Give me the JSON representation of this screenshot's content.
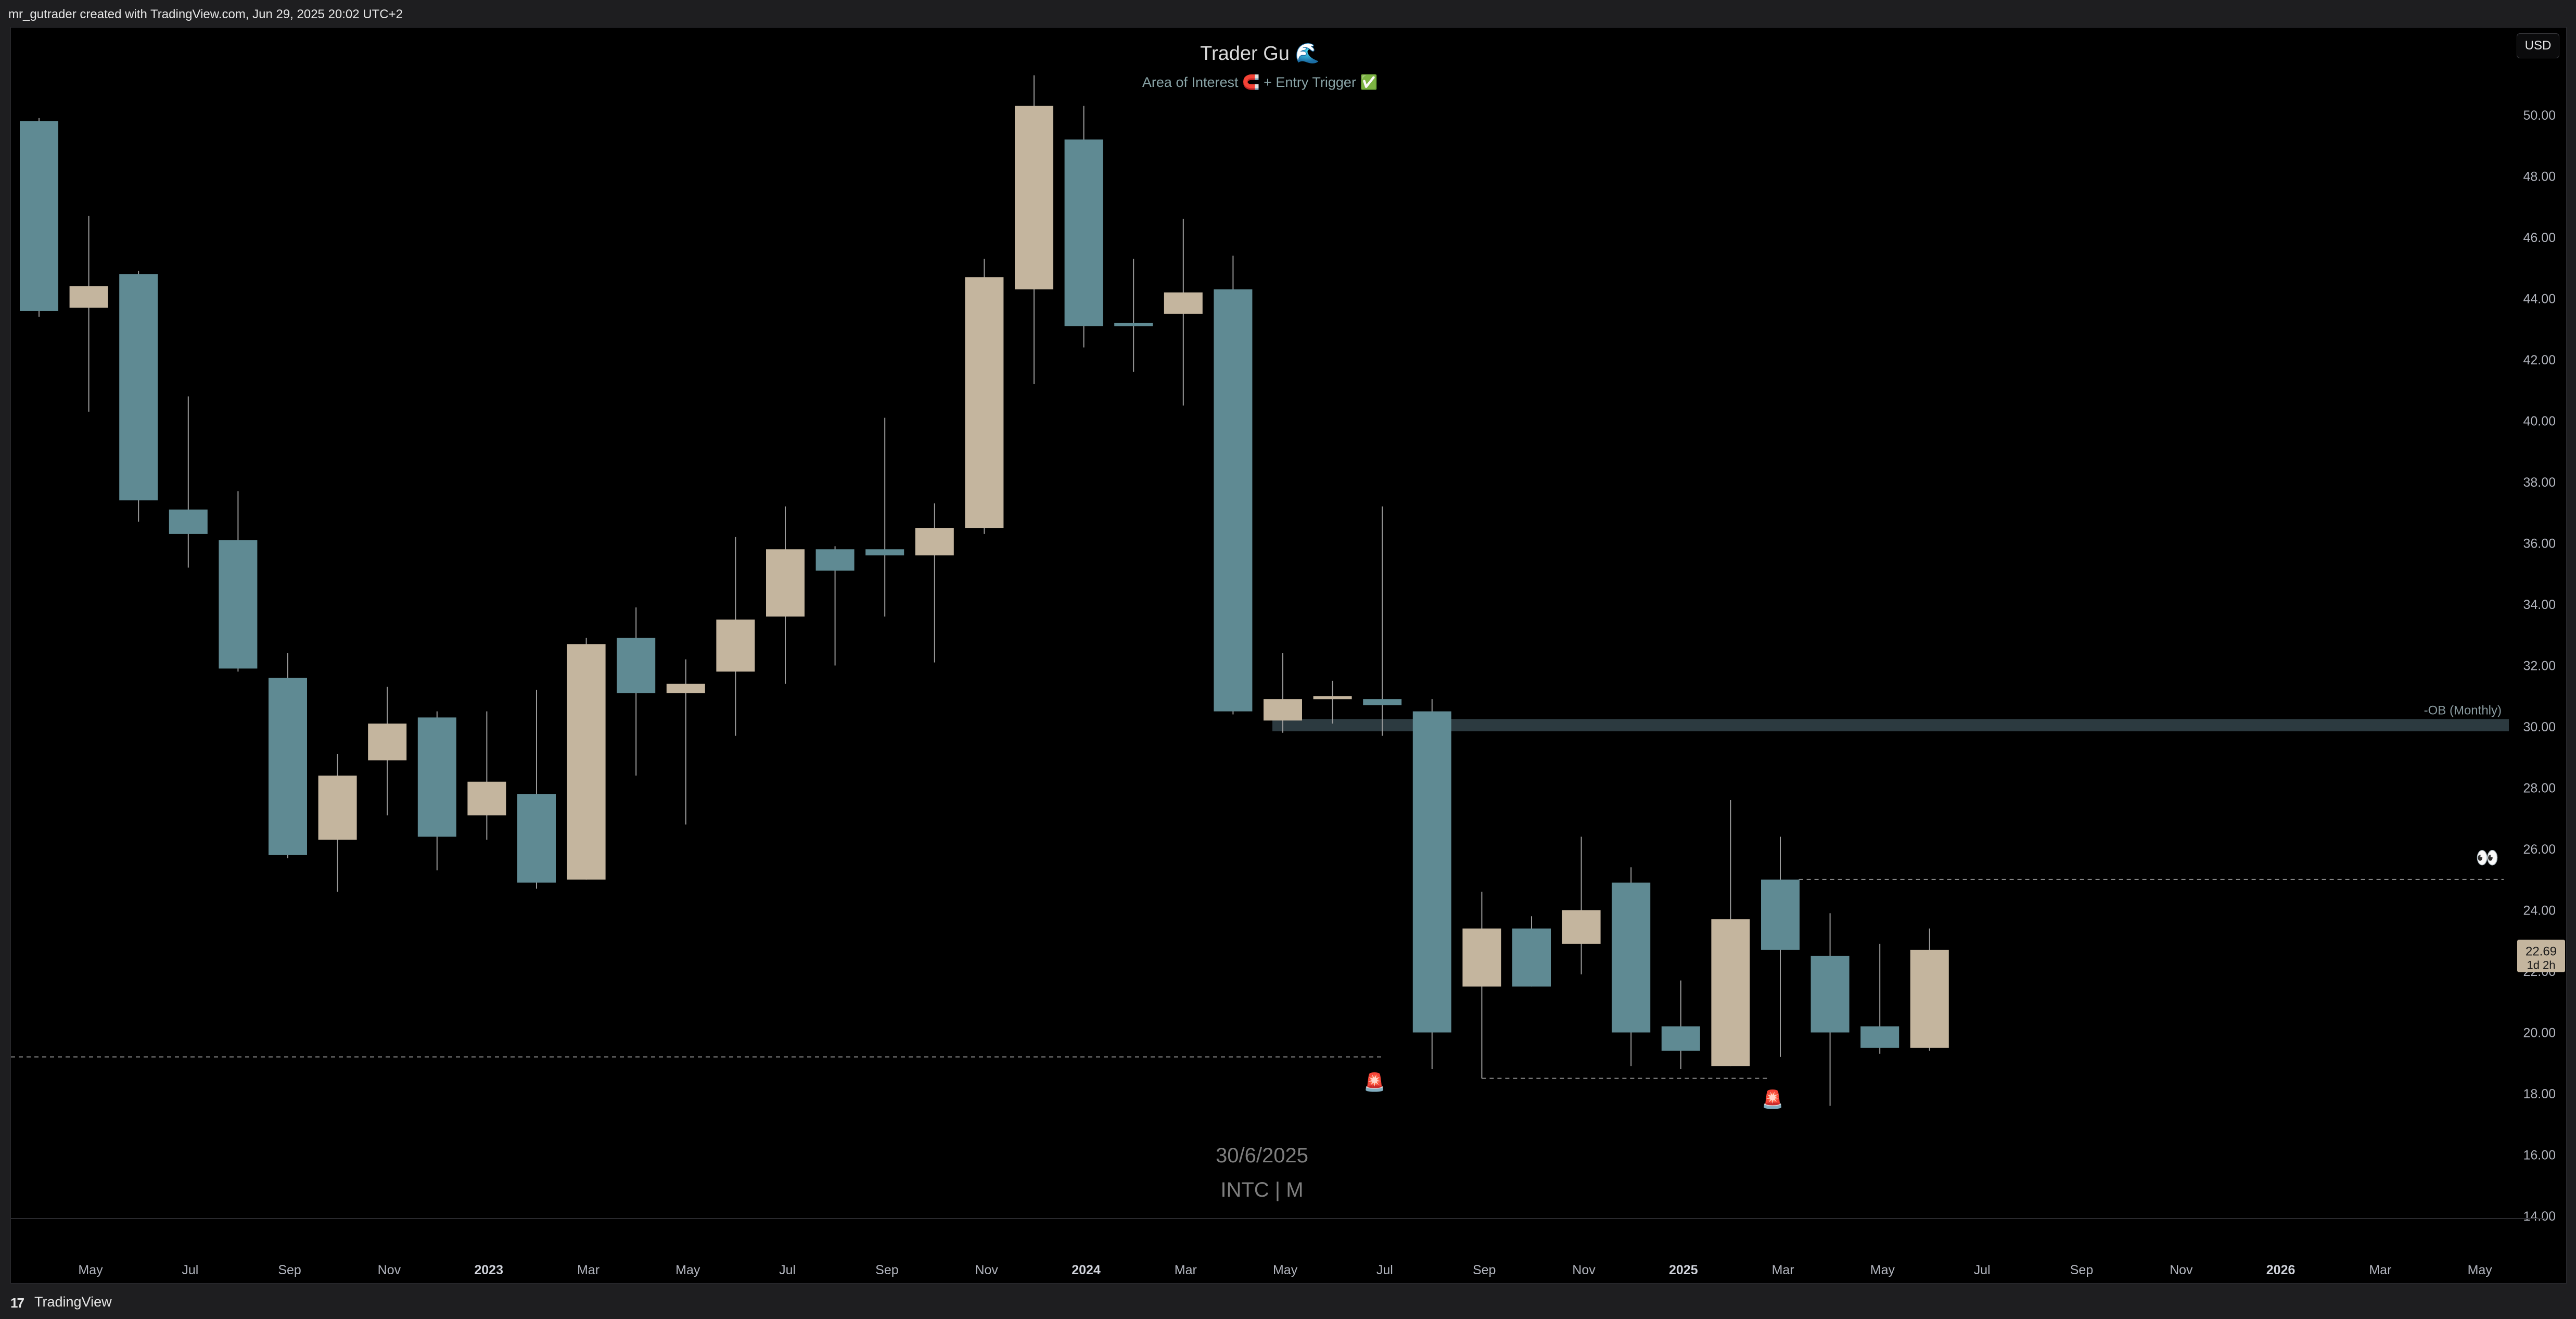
{
  "header": {
    "attribution": "mr_gutrader created with TradingView.com, Jun 29, 2025 20:02 UTC+2"
  },
  "footer": {
    "logo": "17",
    "brand": "TradingView"
  },
  "currency": "USD",
  "colors": {
    "bull": "#c4b59e",
    "bear": "#5f8a93",
    "wick": "#9a9a9a",
    "zone": "#2c3a40",
    "text_dim": "#7e7e7e",
    "text_green": "#8aa5a8"
  },
  "chart_data": {
    "type": "candlestick",
    "title": "Trader Gu 🌊",
    "subtitle": "Area of Interest 🧲 + Entry Trigger ✅",
    "watermark_date": "30/6/2025",
    "watermark_symbol": "INTC | M",
    "timeframe": "Monthly",
    "ylim": [
      14,
      51.5
    ],
    "y_ticks": [
      "50.00",
      "48.00",
      "46.00",
      "44.00",
      "42.00",
      "40.00",
      "38.00",
      "36.00",
      "34.00",
      "32.00",
      "30.00",
      "28.00",
      "26.00",
      "24.00",
      "22.00",
      "20.00",
      "18.00",
      "16.00",
      "14.00"
    ],
    "x_ticks": [
      {
        "label": "May",
        "bold": false
      },
      {
        "label": "Jul",
        "bold": false
      },
      {
        "label": "Sep",
        "bold": false
      },
      {
        "label": "Nov",
        "bold": false
      },
      {
        "label": "2023",
        "bold": true
      },
      {
        "label": "Mar",
        "bold": false
      },
      {
        "label": "May",
        "bold": false
      },
      {
        "label": "Jul",
        "bold": false
      },
      {
        "label": "Sep",
        "bold": false
      },
      {
        "label": "Nov",
        "bold": false
      },
      {
        "label": "2024",
        "bold": true
      },
      {
        "label": "Mar",
        "bold": false
      },
      {
        "label": "May",
        "bold": false
      },
      {
        "label": "Jul",
        "bold": false
      },
      {
        "label": "Sep",
        "bold": false
      },
      {
        "label": "Nov",
        "bold": false
      },
      {
        "label": "2025",
        "bold": true
      },
      {
        "label": "Mar",
        "bold": false
      },
      {
        "label": "May",
        "bold": false
      },
      {
        "label": "Jul",
        "bold": false
      },
      {
        "label": "Sep",
        "bold": false
      },
      {
        "label": "Nov",
        "bold": false
      },
      {
        "label": "2026",
        "bold": true
      },
      {
        "label": "Mar",
        "bold": false
      },
      {
        "label": "May",
        "bold": false
      }
    ],
    "candles": [
      {
        "date": "2022-04",
        "open": 49.8,
        "high": 49.9,
        "low": 43.4,
        "close": 43.6
      },
      {
        "date": "2022-05",
        "open": 43.7,
        "high": 46.7,
        "low": 40.3,
        "close": 44.4
      },
      {
        "date": "2022-06",
        "open": 44.8,
        "high": 44.9,
        "low": 36.7,
        "close": 37.4
      },
      {
        "date": "2022-07",
        "open": 37.1,
        "high": 40.8,
        "low": 35.2,
        "close": 36.3
      },
      {
        "date": "2022-08",
        "open": 36.1,
        "high": 37.7,
        "low": 31.8,
        "close": 31.9
      },
      {
        "date": "2022-09",
        "open": 31.6,
        "high": 32.4,
        "low": 25.7,
        "close": 25.8
      },
      {
        "date": "2022-10",
        "open": 26.3,
        "high": 29.1,
        "low": 24.6,
        "close": 28.4
      },
      {
        "date": "2022-11",
        "open": 28.9,
        "high": 31.3,
        "low": 27.1,
        "close": 30.1
      },
      {
        "date": "2022-12",
        "open": 30.3,
        "high": 30.5,
        "low": 25.3,
        "close": 26.4
      },
      {
        "date": "2023-01",
        "open": 27.1,
        "high": 30.5,
        "low": 26.3,
        "close": 28.2
      },
      {
        "date": "2023-02",
        "open": 27.8,
        "high": 31.2,
        "low": 24.7,
        "close": 24.9
      },
      {
        "date": "2023-03",
        "open": 25.0,
        "high": 32.9,
        "low": 25.0,
        "close": 32.7
      },
      {
        "date": "2023-04",
        "open": 32.9,
        "high": 33.9,
        "low": 28.4,
        "close": 31.1
      },
      {
        "date": "2023-05",
        "open": 31.1,
        "high": 32.2,
        "low": 26.8,
        "close": 31.4
      },
      {
        "date": "2023-06",
        "open": 31.8,
        "high": 36.2,
        "low": 29.7,
        "close": 33.5
      },
      {
        "date": "2023-07",
        "open": 33.6,
        "high": 37.2,
        "low": 31.4,
        "close": 35.8
      },
      {
        "date": "2023-08",
        "open": 35.8,
        "high": 35.9,
        "low": 32.0,
        "close": 35.1
      },
      {
        "date": "2023-09",
        "open": 35.8,
        "high": 40.1,
        "low": 33.6,
        "close": 35.6
      },
      {
        "date": "2023-10",
        "open": 35.6,
        "high": 37.3,
        "low": 32.1,
        "close": 36.5
      },
      {
        "date": "2023-11",
        "open": 36.5,
        "high": 45.3,
        "low": 36.3,
        "close": 44.7
      },
      {
        "date": "2023-12",
        "open": 44.3,
        "high": 51.3,
        "low": 41.2,
        "close": 50.3
      },
      {
        "date": "2024-01",
        "open": 49.2,
        "high": 50.3,
        "low": 42.4,
        "close": 43.1
      },
      {
        "date": "2024-02",
        "open": 43.2,
        "high": 45.3,
        "low": 41.6,
        "close": 43.1
      },
      {
        "date": "2024-03",
        "open": 43.5,
        "high": 46.6,
        "low": 40.5,
        "close": 44.2
      },
      {
        "date": "2024-04",
        "open": 44.3,
        "high": 45.4,
        "low": 30.4,
        "close": 30.5
      },
      {
        "date": "2024-05",
        "open": 30.2,
        "high": 32.4,
        "low": 29.8,
        "close": 30.9
      },
      {
        "date": "2024-06",
        "open": 31.0,
        "high": 31.5,
        "low": 30.1,
        "close": 31.0
      },
      {
        "date": "2024-07",
        "open": 30.9,
        "high": 37.2,
        "low": 29.7,
        "close": 30.7
      },
      {
        "date": "2024-08",
        "open": 30.5,
        "high": 30.9,
        "low": 18.8,
        "close": 20.0
      },
      {
        "date": "2024-09",
        "open": 21.5,
        "high": 24.6,
        "low": 18.5,
        "close": 23.4
      },
      {
        "date": "2024-10",
        "open": 23.4,
        "high": 23.8,
        "low": 21.5,
        "close": 21.5
      },
      {
        "date": "2024-11",
        "open": 22.9,
        "high": 26.4,
        "low": 21.9,
        "close": 24.0
      },
      {
        "date": "2024-12",
        "open": 24.9,
        "high": 25.4,
        "low": 18.9,
        "close": 20.0
      },
      {
        "date": "2025-01",
        "open": 20.2,
        "high": 21.7,
        "low": 18.8,
        "close": 19.4
      },
      {
        "date": "2025-02",
        "open": 18.9,
        "high": 27.6,
        "low": 18.9,
        "close": 23.7
      },
      {
        "date": "2025-03",
        "open": 25.0,
        "high": 26.4,
        "low": 19.2,
        "close": 22.7
      },
      {
        "date": "2025-04",
        "open": 22.5,
        "high": 23.9,
        "low": 17.6,
        "close": 20.0
      },
      {
        "date": "2025-05",
        "open": 20.2,
        "high": 22.9,
        "low": 19.3,
        "close": 19.5
      },
      {
        "date": "2025-06",
        "open": 19.5,
        "high": 23.4,
        "low": 19.4,
        "close": 22.7
      }
    ],
    "annotations": {
      "ob_zone": {
        "label": "-OB (Monthly)",
        "top": 30.2,
        "bottom": 29.9,
        "from": "2024-05"
      },
      "liquidity_low": {
        "price": 19.2,
        "from": "2022-04",
        "to": "2024-07",
        "marker": "🚨"
      },
      "liquidity_low_2": {
        "price": 18.5,
        "from": "2024-09",
        "to": "2025-03",
        "marker": "🚨"
      },
      "liquidity_high": {
        "price": 25.0,
        "from": "2025-04",
        "marker": "👀"
      }
    },
    "last_price": {
      "value": "22.69",
      "countdown": "1d 2h"
    }
  }
}
